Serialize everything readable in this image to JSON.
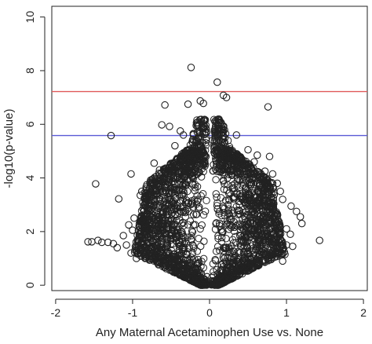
{
  "chart_data": {
    "type": "scatter",
    "title": "",
    "xlabel": "Any Maternal Acetaminophen Use vs. None",
    "ylabel": "-log10(p-value)",
    "xlim": [
      -2.05,
      2.05
    ],
    "ylim": [
      -0.2,
      10.4
    ],
    "x_ticks": [
      -2,
      -1,
      0,
      1,
      2
    ],
    "y_ticks": [
      0,
      2,
      4,
      6,
      8,
      10
    ],
    "x_tick_labels": [
      "-2",
      "-1",
      "0",
      "1",
      "2"
    ],
    "y_tick_labels": [
      "0",
      "2",
      "4",
      "6",
      "8",
      "10"
    ],
    "grid": false,
    "legend": "none",
    "marker": "open-circle",
    "marker_color": "#222222",
    "hlines": [
      {
        "y": 7.22,
        "color": "#e05a5a"
      },
      {
        "y": 5.58,
        "color": "#5a5ad6"
      }
    ],
    "series": [
      {
        "points": [
          [
            -0.24,
            8.12
          ],
          [
            0.1,
            7.57
          ],
          [
            0.18,
            7.08
          ],
          [
            0.22,
            7.0
          ],
          [
            -0.12,
            6.87
          ],
          [
            -0.08,
            6.78
          ],
          [
            -0.28,
            6.75
          ],
          [
            -0.58,
            6.72
          ],
          [
            0.76,
            6.65
          ],
          [
            -0.62,
            5.98
          ],
          [
            -0.52,
            5.92
          ],
          [
            -0.38,
            5.75
          ],
          [
            -0.34,
            5.6
          ],
          [
            -1.28,
            5.58
          ],
          [
            0.35,
            5.6
          ],
          [
            0.2,
            5.5
          ],
          [
            -0.18,
            5.1
          ],
          [
            0.5,
            5.05
          ],
          [
            -0.45,
            5.2
          ],
          [
            0.62,
            4.85
          ],
          [
            0.78,
            4.8
          ],
          [
            -0.72,
            4.55
          ],
          [
            0.72,
            4.25
          ],
          [
            0.82,
            4.15
          ],
          [
            -1.02,
            4.15
          ],
          [
            0.58,
            4.6
          ],
          [
            -0.65,
            4.3
          ],
          [
            -1.48,
            3.78
          ],
          [
            0.88,
            3.8
          ],
          [
            -0.88,
            3.5
          ],
          [
            0.95,
            3.2
          ],
          [
            -1.18,
            3.22
          ],
          [
            -0.9,
            3.35
          ],
          [
            0.92,
            3.5
          ],
          [
            1.06,
            2.95
          ],
          [
            1.13,
            2.75
          ],
          [
            1.18,
            2.55
          ],
          [
            1.2,
            2.3
          ],
          [
            -0.98,
            2.5
          ],
          [
            -1.05,
            2.25
          ],
          [
            1.0,
            2.1
          ],
          [
            -1.0,
            2.05
          ],
          [
            1.05,
            1.9
          ],
          [
            -1.12,
            1.85
          ],
          [
            -1.58,
            1.62
          ],
          [
            -1.53,
            1.62
          ],
          [
            -1.45,
            1.67
          ],
          [
            -1.4,
            1.6
          ],
          [
            -1.32,
            1.6
          ],
          [
            -1.25,
            1.55
          ],
          [
            -1.2,
            1.4
          ],
          [
            1.43,
            1.67
          ],
          [
            0.9,
            1.65
          ],
          [
            1.0,
            1.5
          ],
          [
            0.98,
            1.15
          ],
          [
            -1.02,
            1.2
          ],
          [
            -0.95,
            1.0
          ],
          [
            0.95,
            0.9
          ],
          [
            -1.08,
            1.5
          ],
          [
            1.08,
            1.45
          ]
        ]
      }
    ]
  }
}
